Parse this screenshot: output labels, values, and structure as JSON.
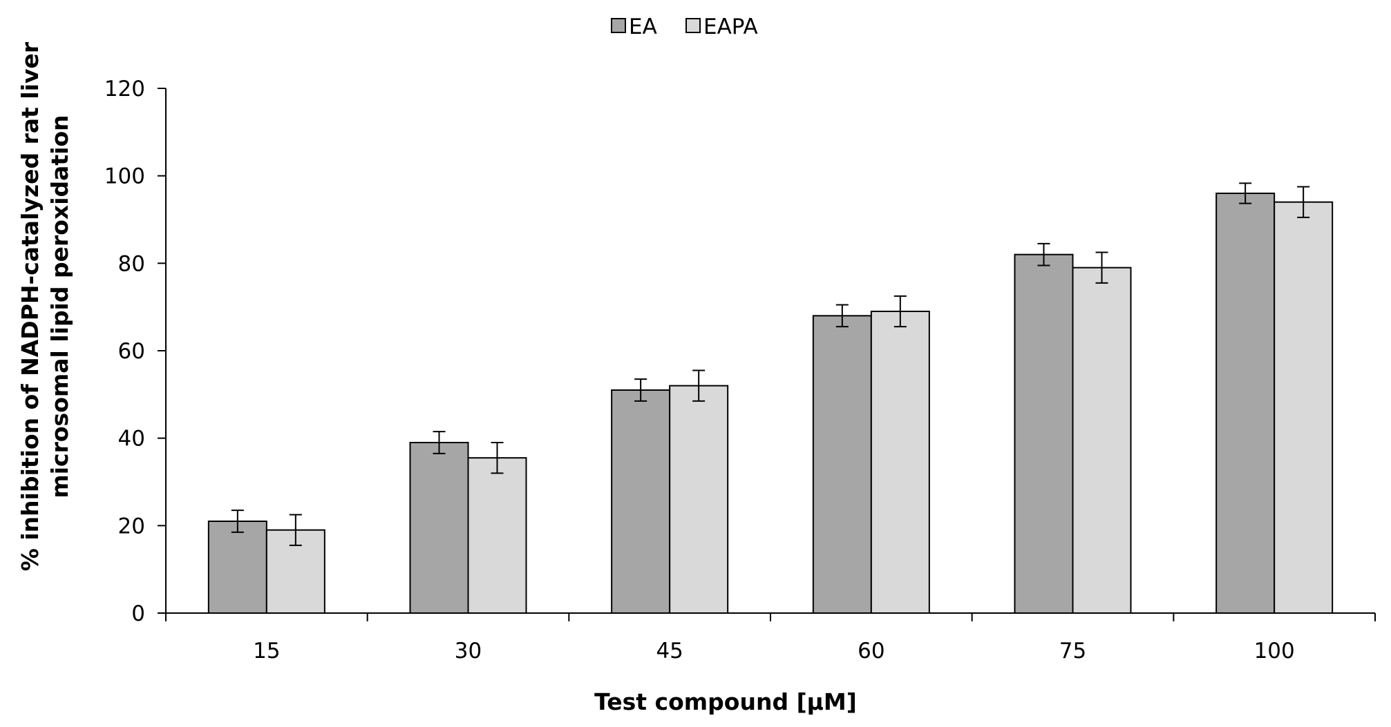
{
  "chart_data": {
    "type": "bar",
    "title": "",
    "xlabel": "Test compound  [µM]",
    "ylabel_lines": [
      "% inhibition of NADPH-catalyzed  rat liver",
      "microsomal lipid peroxidation"
    ],
    "categories": [
      "15",
      "30",
      "45",
      "60",
      "75",
      "100"
    ],
    "series": [
      {
        "name": "EA",
        "color": "#a6a6a6",
        "values": [
          21,
          39,
          51,
          68,
          82,
          96
        ],
        "errors": [
          2.5,
          2.5,
          2.5,
          2.5,
          2.5,
          2.3
        ]
      },
      {
        "name": "EAPA",
        "color": "#d9d9d9",
        "values": [
          19,
          35.5,
          52,
          69,
          79,
          94
        ],
        "errors": [
          3.5,
          3.5,
          3.5,
          3.5,
          3.5,
          3.5
        ]
      }
    ],
    "ylim": [
      0,
      120
    ],
    "yticks": [
      "0",
      "20",
      "40",
      "60",
      "80",
      "100",
      "120"
    ],
    "grid": false,
    "legend_position": "top-center"
  }
}
